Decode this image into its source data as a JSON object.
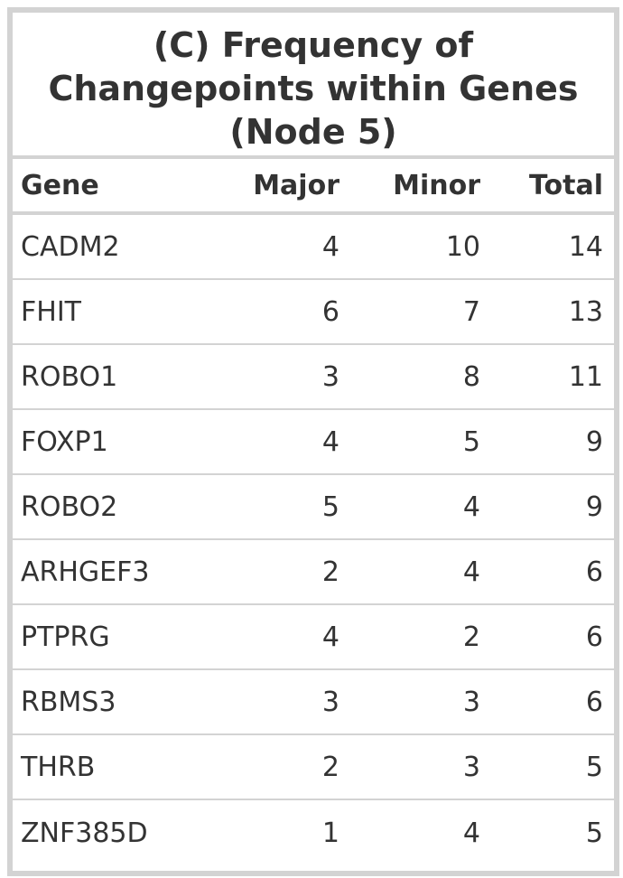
{
  "table": {
    "title_lines": [
      "(C) Frequency of",
      "Changepoints within Genes",
      "(Node 5)"
    ],
    "headers": {
      "gene": "Gene",
      "major": "Major",
      "minor": "Minor",
      "total": "Total"
    },
    "rows": [
      {
        "gene": "CADM2",
        "major": "4",
        "minor": "10",
        "total": "14"
      },
      {
        "gene": "FHIT",
        "major": "6",
        "minor": "7",
        "total": "13"
      },
      {
        "gene": "ROBO1",
        "major": "3",
        "minor": "8",
        "total": "11"
      },
      {
        "gene": "FOXP1",
        "major": "4",
        "minor": "5",
        "total": "9"
      },
      {
        "gene": "ROBO2",
        "major": "5",
        "minor": "4",
        "total": "9"
      },
      {
        "gene": "ARHGEF3",
        "major": "2",
        "minor": "4",
        "total": "6"
      },
      {
        "gene": "PTPRG",
        "major": "4",
        "minor": "2",
        "total": "6"
      },
      {
        "gene": "RBMS3",
        "major": "3",
        "minor": "3",
        "total": "6"
      },
      {
        "gene": "THRB",
        "major": "2",
        "minor": "3",
        "total": "5"
      },
      {
        "gene": "ZNF385D",
        "major": "1",
        "minor": "4",
        "total": "5"
      }
    ]
  }
}
